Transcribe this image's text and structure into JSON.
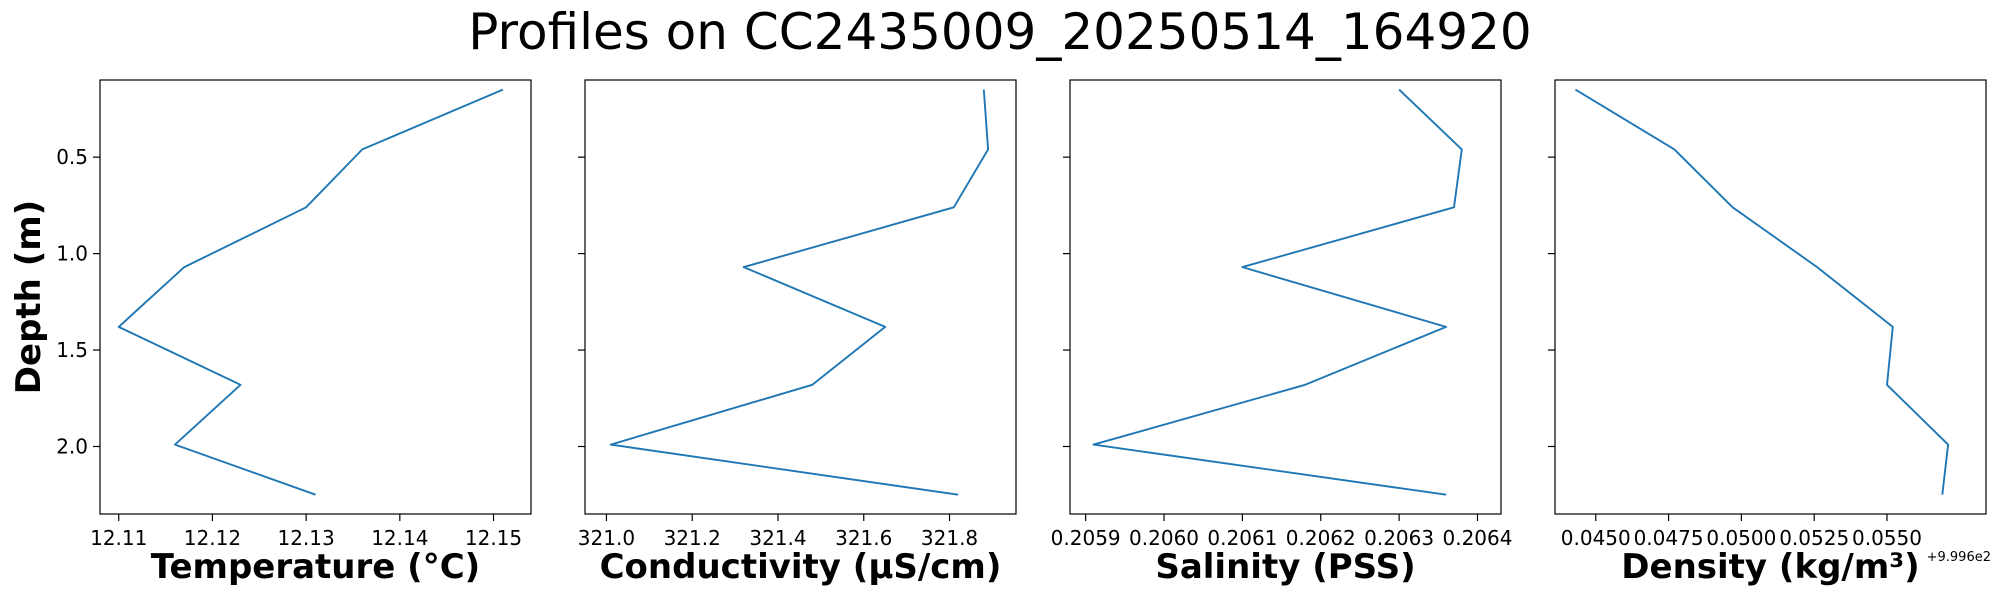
{
  "figure": {
    "title": "Profiles on CC2435009_20250514_164920",
    "line_color": "#1f77b4"
  },
  "chart_data": [
    {
      "type": "line",
      "orientation": "profile",
      "xlabel": "Temperature (°C)",
      "ylabel": "Depth (m)",
      "y_inverted": true,
      "xlim": [
        12.108,
        12.154
      ],
      "ylim": [
        2.35,
        0.1
      ],
      "xticks": [
        "12.11",
        "12.12",
        "12.13",
        "12.14",
        "12.15"
      ],
      "xtick_values": [
        12.11,
        12.12,
        12.13,
        12.14,
        12.15
      ],
      "yticks": [
        "0.5",
        "1.0",
        "1.5",
        "2.0"
      ],
      "ytick_values": [
        0.5,
        1.0,
        1.5,
        2.0
      ],
      "grid": false,
      "series": [
        {
          "depth": [
            0.15,
            0.46,
            0.76,
            1.07,
            1.38,
            1.68,
            1.99,
            2.25
          ],
          "values": [
            12.151,
            12.136,
            12.13,
            12.117,
            12.11,
            12.123,
            12.116,
            12.131
          ]
        }
      ]
    },
    {
      "type": "line",
      "orientation": "profile",
      "xlabel": "Conductivity (µS/cm)",
      "ylabel": "",
      "y_inverted": true,
      "xlim": [
        320.95,
        321.955
      ],
      "ylim": [
        2.35,
        0.1
      ],
      "xticks": [
        "321.0",
        "321.2",
        "321.4",
        "321.6",
        "321.8"
      ],
      "xtick_values": [
        321.0,
        321.2,
        321.4,
        321.6,
        321.8
      ],
      "yticks": [
        "0.5",
        "1.0",
        "1.5",
        "2.0"
      ],
      "ytick_values": [
        0.5,
        1.0,
        1.5,
        2.0
      ],
      "grid": false,
      "series": [
        {
          "depth": [
            0.15,
            0.46,
            0.76,
            1.07,
            1.38,
            1.68,
            1.99,
            2.25
          ],
          "values": [
            321.88,
            321.89,
            321.81,
            321.32,
            321.65,
            321.48,
            321.01,
            321.82
          ]
        }
      ]
    },
    {
      "type": "line",
      "orientation": "profile",
      "xlabel": "Salinity (PSS)",
      "ylabel": "",
      "y_inverted": true,
      "xlim": [
        0.20588,
        0.20643
      ],
      "ylim": [
        2.35,
        0.1
      ],
      "xticks": [
        "0.2059",
        "0.2060",
        "0.2061",
        "0.2062",
        "0.2063",
        "0.2064"
      ],
      "xtick_values": [
        0.2059,
        0.206,
        0.2061,
        0.2062,
        0.2063,
        0.2064
      ],
      "yticks": [
        "0.5",
        "1.0",
        "1.5",
        "2.0"
      ],
      "ytick_values": [
        0.5,
        1.0,
        1.5,
        2.0
      ],
      "grid": false,
      "series": [
        {
          "depth": [
            0.15,
            0.46,
            0.76,
            1.07,
            1.38,
            1.68,
            1.99,
            2.25
          ],
          "values": [
            0.2063,
            0.20638,
            0.20637,
            0.2061,
            0.20636,
            0.20618,
            0.20591,
            0.20636
          ]
        }
      ]
    },
    {
      "type": "line",
      "orientation": "profile",
      "xlabel": "Density (kg/m³)",
      "x_offset_text": "+9.996e2",
      "ylabel": "",
      "y_inverted": true,
      "xlim": [
        0.0436,
        0.0584
      ],
      "ylim": [
        2.35,
        0.1
      ],
      "xticks": [
        "0.0450",
        "0.0475",
        "0.0500",
        "0.0525",
        "0.0550"
      ],
      "xtick_values": [
        0.045,
        0.0475,
        0.05,
        0.0525,
        0.055
      ],
      "yticks": [
        "0.5",
        "1.0",
        "1.5",
        "2.0"
      ],
      "ytick_values": [
        0.5,
        1.0,
        1.5,
        2.0
      ],
      "grid": false,
      "series": [
        {
          "depth": [
            0.15,
            0.46,
            0.76,
            1.07,
            1.38,
            1.68,
            1.99,
            2.25
          ],
          "values": [
            0.0443,
            0.0477,
            0.0497,
            0.0526,
            0.0552,
            0.055,
            0.0571,
            0.0569
          ]
        }
      ]
    }
  ]
}
